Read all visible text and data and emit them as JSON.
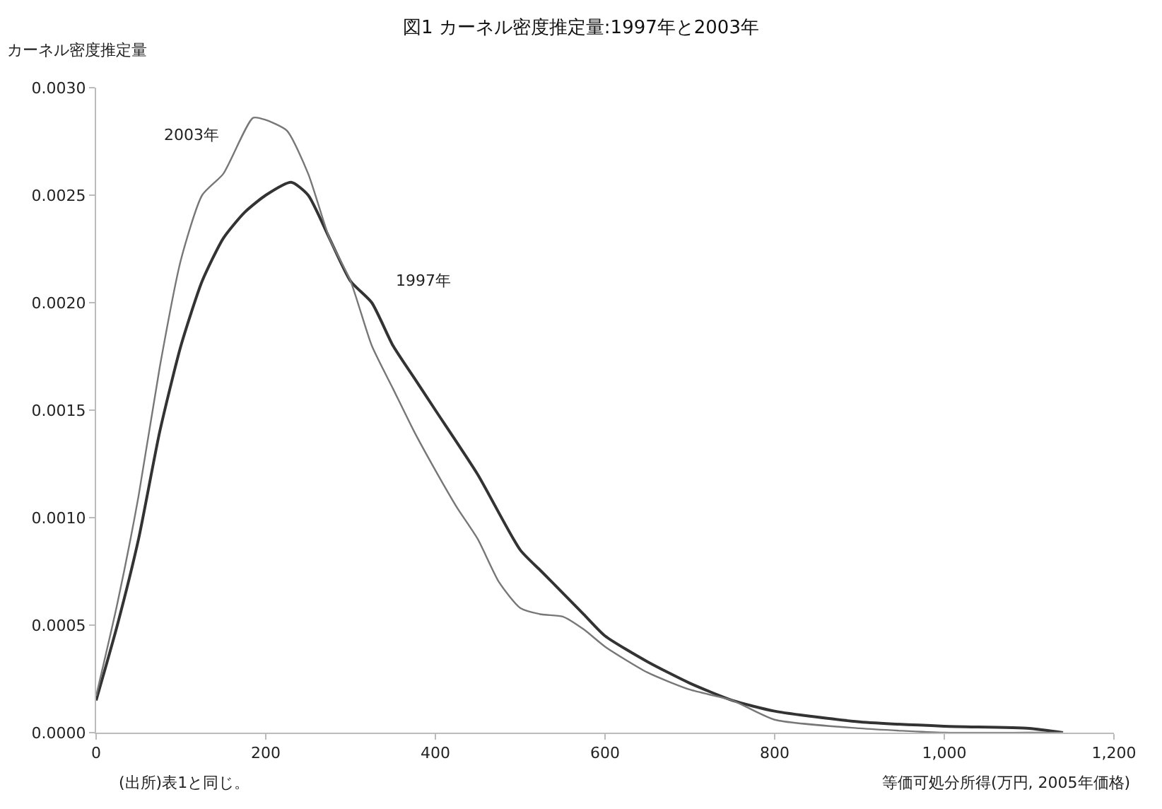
{
  "chart_data": {
    "type": "line",
    "title": "図1 カーネル密度推定量:1997年と2003年",
    "xlabel": "等価可処分所得(万円, 2005年価格)",
    "ylabel": "カーネル密度推定量",
    "xlim": [
      0,
      1200
    ],
    "xticks": [
      0,
      200,
      400,
      600,
      800,
      {
        "value": 1000,
        "label": "1,000"
      },
      {
        "value": 1200,
        "label": "1,200"
      }
    ],
    "ylim": [
      0,
      0.003
    ],
    "yticks": [
      {
        "value": 0,
        "label": "0.0000"
      },
      {
        "value": 0.0005,
        "label": "0.0005"
      },
      {
        "value": 0.001,
        "label": "0.0010"
      },
      {
        "value": 0.0015,
        "label": "0.0015"
      },
      {
        "value": 0.002,
        "label": "0.0020"
      },
      {
        "value": 0.0025,
        "label": "0.0025"
      },
      {
        "value": 0.003,
        "label": "0.0030"
      }
    ],
    "grid": false,
    "legend": false,
    "marker": "none",
    "line_style": "solid",
    "series": [
      {
        "name": "1997年",
        "color": "#333333",
        "x": [
          0,
          25,
          50,
          75,
          100,
          125,
          150,
          175,
          200,
          230,
          250,
          275,
          300,
          325,
          350,
          375,
          400,
          450,
          500,
          525,
          550,
          575,
          600,
          650,
          700,
          750,
          800,
          900,
          1000,
          1100,
          1140
        ],
        "values": [
          0.00015,
          0.0005,
          0.0009,
          0.0014,
          0.0018,
          0.0021,
          0.0023,
          0.00242,
          0.0025,
          0.00256,
          0.0025,
          0.0023,
          0.0021,
          0.002,
          0.0018,
          0.00165,
          0.0015,
          0.0012,
          0.00085,
          0.00075,
          0.00065,
          0.00055,
          0.00045,
          0.00033,
          0.00023,
          0.00015,
          0.0001,
          5e-05,
          3e-05,
          2e-05,
          0
        ]
      },
      {
        "name": "2003年",
        "color": "#777777",
        "x": [
          0,
          25,
          50,
          75,
          100,
          125,
          150,
          185,
          200,
          225,
          250,
          275,
          300,
          325,
          350,
          375,
          400,
          425,
          450,
          475,
          500,
          525,
          550,
          575,
          600,
          650,
          700,
          750,
          800,
          900,
          1000,
          1100,
          1140
        ],
        "values": [
          0.00017,
          0.0006,
          0.0011,
          0.0017,
          0.0022,
          0.0025,
          0.0026,
          0.00286,
          0.00285,
          0.0028,
          0.0026,
          0.0023,
          0.0021,
          0.0018,
          0.0016,
          0.0014,
          0.00122,
          0.00105,
          0.0009,
          0.0007,
          0.00058,
          0.00055,
          0.00054,
          0.00048,
          0.0004,
          0.00028,
          0.0002,
          0.00015,
          6e-05,
          2e-05,
          0,
          0,
          0
        ]
      }
    ],
    "annotations": [
      "(出所)表1と同じ。"
    ]
  }
}
